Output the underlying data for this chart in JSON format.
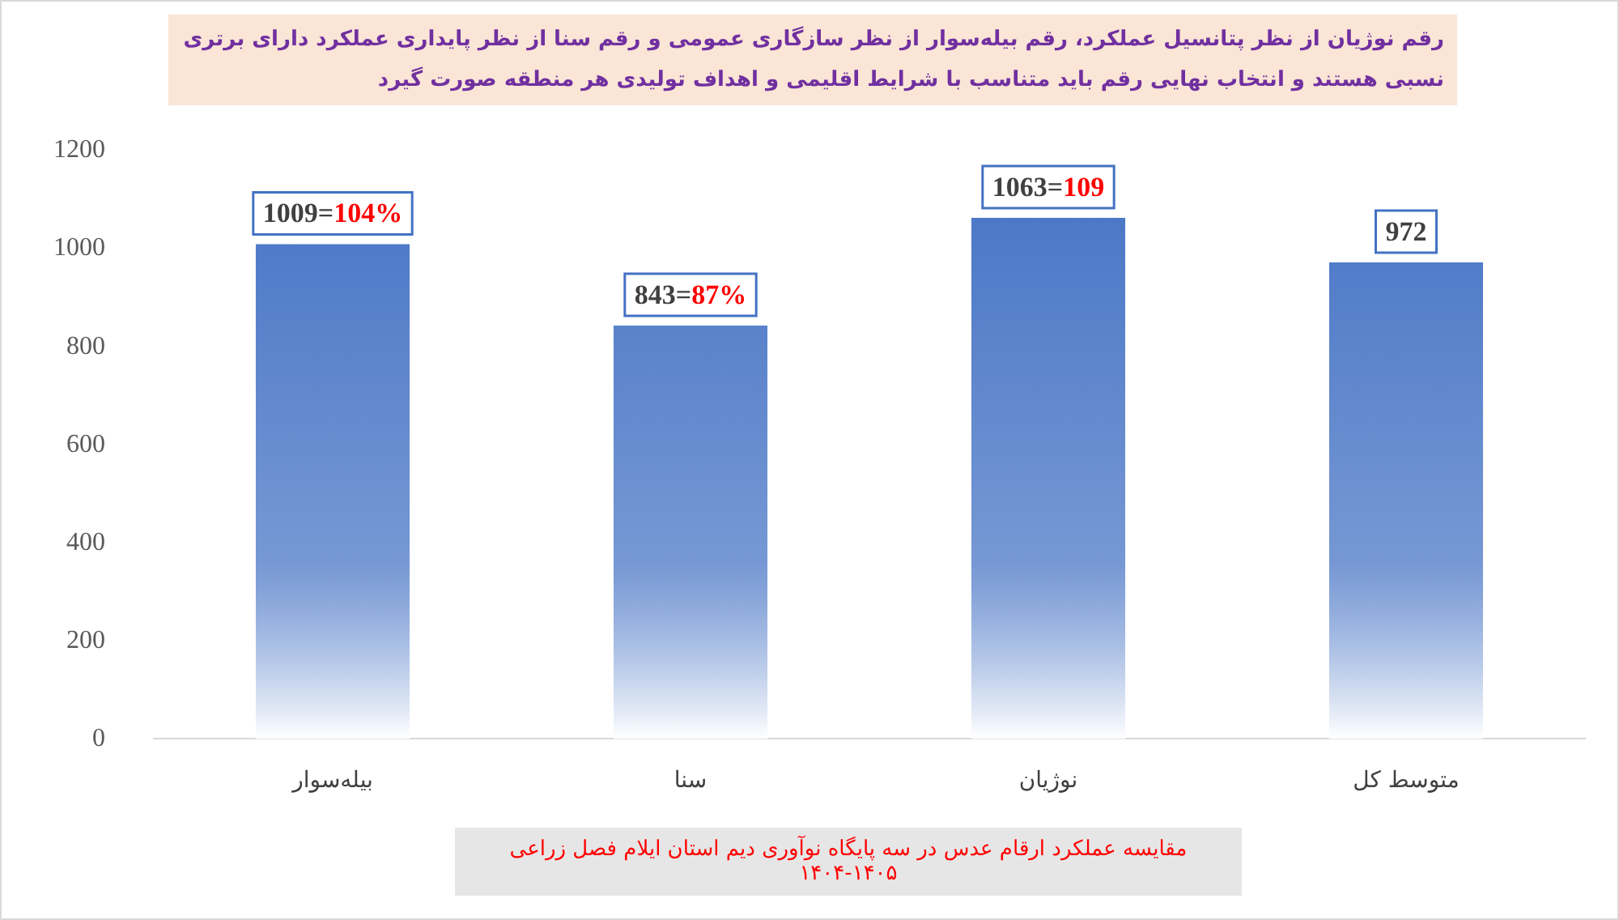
{
  "chart_data": {
    "type": "bar",
    "title": "رقم نوژیان از نظر پتانسیل عملکرد، رقم بیله‌سوار از نظر سازگاری عمومی و رقم سنا از نظر پایداری عملکرد دارای برتری نسبی هستند و انتخاب نهایی رقم باید متناسب با شرایط اقلیمی و اهداف تولیدی هر منطقه صورت گیرد",
    "categories": [
      "بیله‌سوار",
      "سنا",
      "نوژیان",
      "متوسط کل"
    ],
    "values": [
      1009,
      843,
      1063,
      972
    ],
    "value_labels": [
      "1009=104%",
      "843=87%",
      "1063=109",
      "972"
    ],
    "color": "#4472c4",
    "ylim": [
      0,
      1200
    ],
    "yticks": [
      0,
      200,
      400,
      600,
      800,
      1000,
      1200
    ],
    "grid": false,
    "legend": false,
    "annotations": [
      "مقایسه عملکرد ارقام عدس در سه پایگاه نوآوری دیم استان ایلام فصل زراعی ۱۴۰۵-۱۴۰۴"
    ]
  }
}
